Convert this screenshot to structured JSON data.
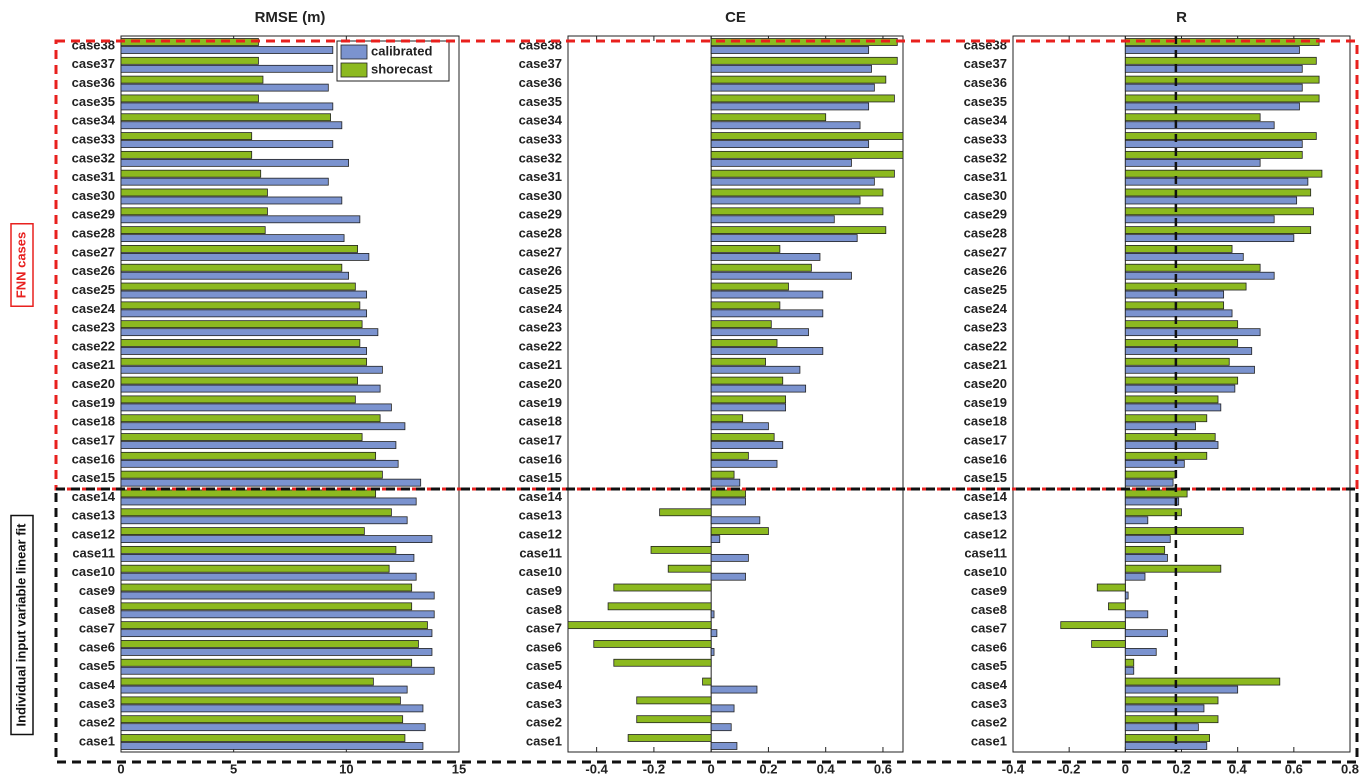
{
  "chart_data": [
    {
      "type": "bar",
      "orientation": "horizontal",
      "title": "RMSE (m)",
      "categories": [
        "case38",
        "case37",
        "case36",
        "case35",
        "case34",
        "case33",
        "case32",
        "case31",
        "case30",
        "case29",
        "case28",
        "case27",
        "case26",
        "case25",
        "case24",
        "case23",
        "case22",
        "case21",
        "case20",
        "case19",
        "case18",
        "case17",
        "case16",
        "case15",
        "case14",
        "case13",
        "case12",
        "case11",
        "case10",
        "case9",
        "case8",
        "case7",
        "case6",
        "case5",
        "case4",
        "case3",
        "case2",
        "case1"
      ],
      "series": [
        {
          "name": "calibrated",
          "color": "#7b93cf",
          "values": [
            9.4,
            9.4,
            9.2,
            9.4,
            9.8,
            9.4,
            10.1,
            9.2,
            9.8,
            10.6,
            9.9,
            11.0,
            10.1,
            10.9,
            10.9,
            11.4,
            10.9,
            11.6,
            11.5,
            12.0,
            12.6,
            12.2,
            12.3,
            13.3,
            13.1,
            12.7,
            13.8,
            13.0,
            13.1,
            13.9,
            13.9,
            13.8,
            13.8,
            13.9,
            12.7,
            13.4,
            13.5,
            13.4
          ]
        },
        {
          "name": "shorecast",
          "color": "#8cb91f",
          "values": [
            6.1,
            6.1,
            6.3,
            6.1,
            9.3,
            5.8,
            5.8,
            6.2,
            6.5,
            6.5,
            6.4,
            10.5,
            9.8,
            10.4,
            10.6,
            10.7,
            10.6,
            10.9,
            10.5,
            10.4,
            11.5,
            10.7,
            11.3,
            11.6,
            11.3,
            12.0,
            10.8,
            12.2,
            11.9,
            12.9,
            12.9,
            13.6,
            13.2,
            12.9,
            11.2,
            12.4,
            12.5,
            12.6
          ]
        }
      ],
      "xlim": [
        0,
        15
      ],
      "xticks": [
        0,
        5,
        10,
        15
      ],
      "legend": "upper right"
    },
    {
      "type": "bar",
      "orientation": "horizontal",
      "title": "CE",
      "categories": [
        "case38",
        "case37",
        "case36",
        "case35",
        "case34",
        "case33",
        "case32",
        "case31",
        "case30",
        "case29",
        "case28",
        "case27",
        "case26",
        "case25",
        "case24",
        "case23",
        "case22",
        "case21",
        "case20",
        "case19",
        "case18",
        "case17",
        "case16",
        "case15",
        "case14",
        "case13",
        "case12",
        "case11",
        "case10",
        "case9",
        "case8",
        "case7",
        "case6",
        "case5",
        "case4",
        "case3",
        "case2",
        "case1"
      ],
      "series": [
        {
          "color": "#7b93cf",
          "values": [
            0.55,
            0.56,
            0.57,
            0.55,
            0.52,
            0.55,
            0.49,
            0.57,
            0.52,
            0.43,
            0.51,
            0.38,
            0.49,
            0.39,
            0.39,
            0.34,
            0.39,
            0.31,
            0.33,
            0.26,
            0.2,
            0.25,
            0.23,
            0.1,
            0.12,
            0.17,
            0.03,
            0.13,
            0.12,
            0,
            0.01,
            0.02,
            0.01,
            0,
            0.16,
            0.08,
            0.07,
            0.09
          ]
        },
        {
          "color": "#8cb91f",
          "values": [
            0.65,
            0.65,
            0.61,
            0.64,
            0.4,
            0.67,
            0.67,
            0.64,
            0.6,
            0.6,
            0.61,
            0.24,
            0.35,
            0.27,
            0.24,
            0.21,
            0.23,
            0.19,
            0.25,
            0.26,
            0.11,
            0.22,
            0.13,
            0.08,
            0.12,
            -0.18,
            0.2,
            -0.21,
            -0.15,
            -0.34,
            -0.36,
            -0.5,
            -0.41,
            -0.34,
            -0.03,
            -0.26,
            -0.26,
            -0.29
          ]
        }
      ],
      "xlim": [
        -0.5,
        0.67
      ],
      "xticks": [
        -0.4,
        -0.2,
        0,
        0.2,
        0.4,
        0.6
      ]
    },
    {
      "type": "bar",
      "orientation": "horizontal",
      "title": "R",
      "categories": [
        "case38",
        "case37",
        "case36",
        "case35",
        "case34",
        "case33",
        "case32",
        "case31",
        "case30",
        "case29",
        "case28",
        "case27",
        "case26",
        "case25",
        "case24",
        "case23",
        "case22",
        "case21",
        "case20",
        "case19",
        "case18",
        "case17",
        "case16",
        "case15",
        "case14",
        "case13",
        "case12",
        "case11",
        "case10",
        "case9",
        "case8",
        "case7",
        "case6",
        "case5",
        "case4",
        "case3",
        "case2",
        "case1"
      ],
      "series": [
        {
          "color": "#7b93cf",
          "values": [
            0.62,
            0.63,
            0.63,
            0.62,
            0.53,
            0.63,
            0.48,
            0.65,
            0.61,
            0.53,
            0.6,
            0.42,
            0.53,
            0.35,
            0.38,
            0.48,
            0.45,
            0.46,
            0.39,
            0.34,
            0.25,
            0.33,
            0.21,
            0.17,
            0.19,
            0.08,
            0.16,
            0.15,
            0.07,
            0.01,
            0.08,
            0.15,
            0.11,
            0.03,
            0.4,
            0.28,
            0.26,
            0.29
          ]
        },
        {
          "color": "#8cb91f",
          "values": [
            0.69,
            0.68,
            0.69,
            0.69,
            0.48,
            0.68,
            0.63,
            0.7,
            0.66,
            0.67,
            0.66,
            0.38,
            0.48,
            0.43,
            0.35,
            0.4,
            0.4,
            0.37,
            0.4,
            0.33,
            0.29,
            0.32,
            0.29,
            0.18,
            0.22,
            0.2,
            0.42,
            0.14,
            0.34,
            -0.1,
            -0.06,
            -0.23,
            -0.12,
            0.03,
            0.55,
            0.33,
            0.33,
            0.3
          ]
        }
      ],
      "xlim": [
        -0.4,
        0.8
      ],
      "xticks": [
        -0.4,
        -0.2,
        0,
        0.2,
        0.4,
        0.6,
        0.8
      ],
      "ref_line": 0.18
    }
  ],
  "groups": [
    {
      "label": "FNN cases",
      "color": "#e8201e"
    },
    {
      "label": "Individual input variable linear fit",
      "color": "#111111"
    }
  ]
}
